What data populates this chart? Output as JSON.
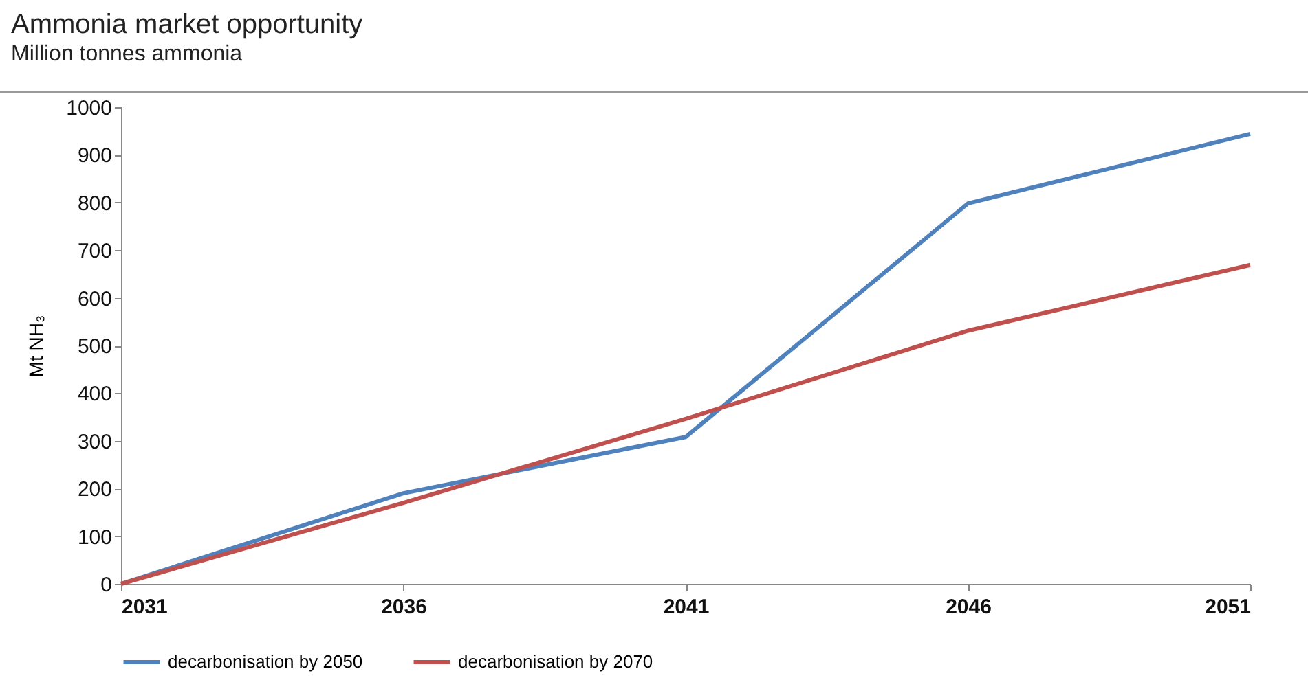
{
  "chart_data": {
    "type": "line",
    "title": "Ammonia market opportunity",
    "subtitle": "Million tonnes ammonia",
    "ylabel": "Mt NH₃",
    "x": [
      2031,
      2036,
      2041,
      2046,
      2051
    ],
    "series": [
      {
        "name": "decarbonisation by 2050",
        "color": "#4f81bd",
        "values": [
          0,
          190,
          308,
          798,
          944
        ]
      },
      {
        "name": "decarbonisation by 2070",
        "color": "#c0504d",
        "values": [
          0,
          170,
          346,
          531,
          669
        ]
      }
    ],
    "xlim": [
      2031,
      2051
    ],
    "xticks": [
      2031,
      2036,
      2041,
      2046,
      2051
    ],
    "ylim": [
      0,
      1000
    ],
    "yticks": [
      0,
      100,
      200,
      300,
      400,
      500,
      600,
      700,
      800,
      900,
      1000
    ],
    "grid": false,
    "legend": "bottom",
    "marker": "none",
    "line_style": "solid"
  }
}
